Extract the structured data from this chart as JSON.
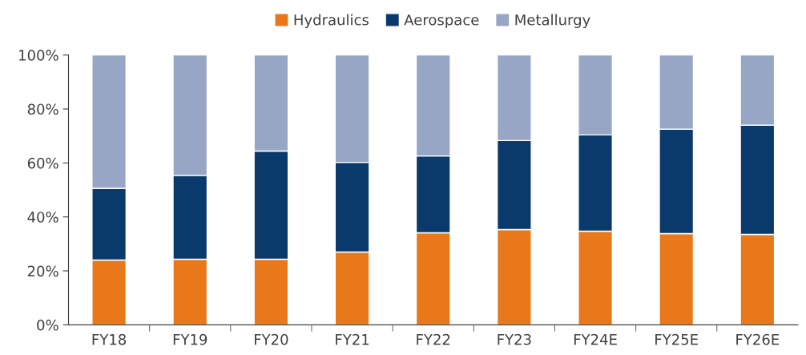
{
  "chart_data": {
    "type": "bar",
    "stacked": true,
    "categories": [
      "FY18",
      "FY19",
      "FY20",
      "FY21",
      "FY22",
      "FY23",
      "FY24E",
      "FY25E",
      "FY26E"
    ],
    "series": [
      {
        "name": "Hydraulics",
        "color": "#e8781a",
        "values": [
          24.0,
          24.3,
          24.3,
          27.0,
          34.1,
          35.3,
          34.7,
          33.8,
          33.5
        ]
      },
      {
        "name": "Aerospace",
        "color": "#0a3a6b",
        "values": [
          26.6,
          31.1,
          40.1,
          33.2,
          28.5,
          33.0,
          35.7,
          38.7,
          40.5
        ]
      },
      {
        "name": "Metallurgy",
        "color": "#98a6c5",
        "values": [
          49.4,
          44.6,
          35.6,
          39.8,
          37.4,
          31.7,
          29.6,
          27.5,
          26.0
        ]
      }
    ],
    "ylim": [
      0,
      100
    ],
    "yticks": [
      {
        "value": 0,
        "label": "0%"
      },
      {
        "value": 20,
        "label": "20%"
      },
      {
        "value": 40,
        "label": "40%"
      },
      {
        "value": 60,
        "label": "60%"
      },
      {
        "value": 80,
        "label": "80%"
      },
      {
        "value": 100,
        "label": "100%"
      }
    ],
    "grid": false,
    "legend": "top"
  }
}
